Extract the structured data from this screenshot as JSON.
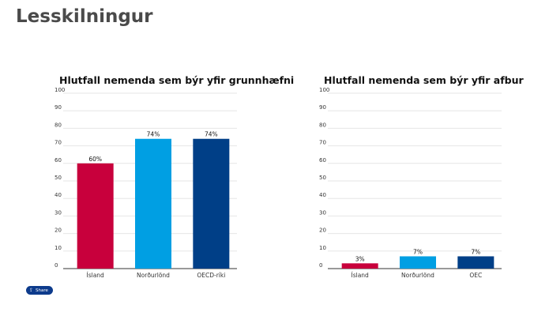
{
  "page": {
    "title": "Lesskilningur"
  },
  "share": {
    "label": "Share",
    "icon": "share-icon"
  },
  "colors": {
    "island": "#c8003c",
    "nordurlond": "#009fe3",
    "oecd": "#003f87",
    "grid": "#e6e6e6",
    "axis": "#333333"
  },
  "chart_data": [
    {
      "type": "bar",
      "title": "Hlutfall nemenda sem býr yfir grunnhæfni",
      "categories": [
        "Ísland",
        "Norðurlönd",
        "OECD-ríki"
      ],
      "values": [
        60,
        74,
        74
      ],
      "value_labels": [
        "60%",
        "74%",
        "74%"
      ],
      "ylim": [
        0,
        100
      ],
      "yticks": [
        "0",
        "10",
        "20",
        "30",
        "40",
        "50",
        "60",
        "70",
        "80",
        "90",
        "100"
      ],
      "grid": true
    },
    {
      "type": "bar",
      "title": "Hlutfall nemenda sem býr yfir afbur",
      "categories": [
        "Ísland",
        "Norðurlönd",
        "OEC"
      ],
      "values": [
        3,
        7,
        7
      ],
      "value_labels": [
        "3%",
        "7%",
        "7%"
      ],
      "ylim": [
        0,
        100
      ],
      "yticks": [
        "0",
        "10",
        "20",
        "30",
        "40",
        "50",
        "60",
        "70",
        "80",
        "90",
        "100"
      ],
      "grid": true
    }
  ]
}
